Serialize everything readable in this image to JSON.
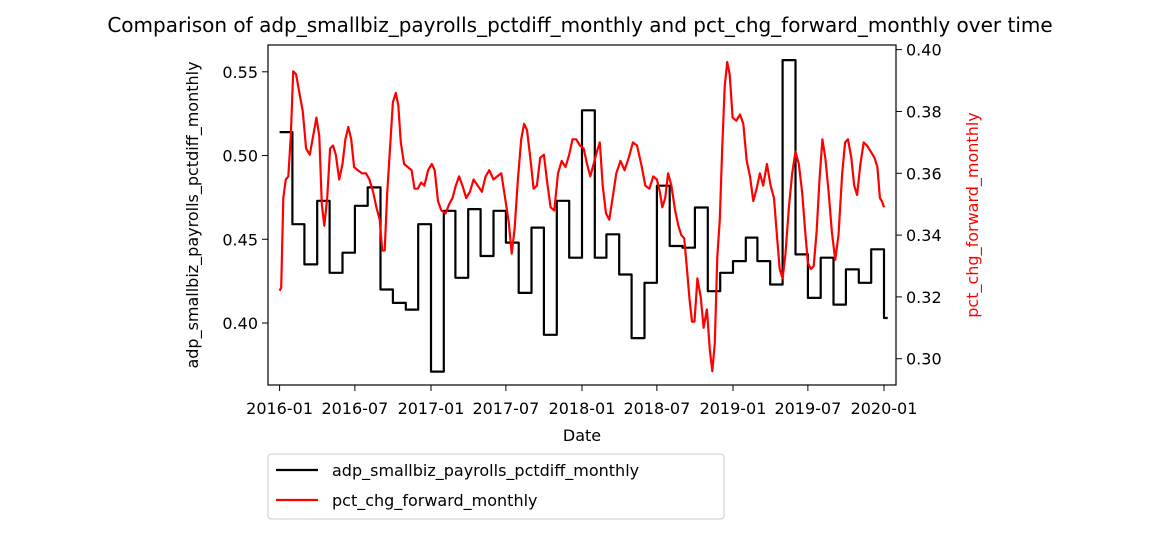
{
  "chart_data": {
    "type": "line",
    "title": "Comparison of adp_smallbiz_payrolls_pctdiff_monthly and pct_chg_forward_monthly over time",
    "xlabel": "Date",
    "ylabel_left": "adp_smallbiz_payrolls_pctdiff_monthly",
    "ylabel_right": "pct_chg_forward_monthly",
    "xlim": [
      "2015-12-04",
      "2020-01-30"
    ],
    "ylim_left": [
      0.363,
      0.566
    ],
    "ylim_right": [
      0.2915,
      0.4015
    ],
    "x_ticks": [
      "2016-01",
      "2016-07",
      "2017-01",
      "2017-07",
      "2018-01",
      "2018-07",
      "2019-01",
      "2019-07",
      "2020-01"
    ],
    "x_tick_values": [
      "2016-01-01",
      "2016-07-01",
      "2017-01-01",
      "2017-07-01",
      "2018-01-01",
      "2018-07-01",
      "2019-01-01",
      "2019-07-01",
      "2020-01-01"
    ],
    "y_ticks_left": [
      0.4,
      0.45,
      0.5,
      0.55
    ],
    "y_tick_labels_left": [
      "0.40",
      "0.45",
      "0.50",
      "0.55"
    ],
    "y_ticks_right": [
      0.3,
      0.32,
      0.34,
      0.36,
      0.38,
      0.4
    ],
    "y_tick_labels_right": [
      "0.30",
      "0.32",
      "0.34",
      "0.36",
      "0.38",
      "0.40"
    ],
    "grid": false,
    "legend_placement": "below-left",
    "series": [
      {
        "name": "adp_smallbiz_payrolls_pctdiff_monthly",
        "axis": "left",
        "color": "#000000",
        "step": true,
        "points": [
          [
            "2016-01-01",
            0.514
          ],
          [
            "2016-02-01",
            0.459
          ],
          [
            "2016-03-01",
            0.435
          ],
          [
            "2016-04-01",
            0.473
          ],
          [
            "2016-05-01",
            0.43
          ],
          [
            "2016-06-01",
            0.442
          ],
          [
            "2016-07-01",
            0.47
          ],
          [
            "2016-08-01",
            0.481
          ],
          [
            "2016-09-01",
            0.42
          ],
          [
            "2016-10-01",
            0.412
          ],
          [
            "2016-11-01",
            0.408
          ],
          [
            "2016-12-01",
            0.459
          ],
          [
            "2017-01-01",
            0.371
          ],
          [
            "2017-02-01",
            0.467
          ],
          [
            "2017-03-01",
            0.427
          ],
          [
            "2017-04-01",
            0.468
          ],
          [
            "2017-05-01",
            0.44
          ],
          [
            "2017-06-01",
            0.467
          ],
          [
            "2017-07-01",
            0.448
          ],
          [
            "2017-08-01",
            0.418
          ],
          [
            "2017-09-01",
            0.457
          ],
          [
            "2017-10-01",
            0.393
          ],
          [
            "2017-11-01",
            0.473
          ],
          [
            "2017-12-01",
            0.439
          ],
          [
            "2018-01-01",
            0.527
          ],
          [
            "2018-02-01",
            0.439
          ],
          [
            "2018-03-01",
            0.453
          ],
          [
            "2018-04-01",
            0.429
          ],
          [
            "2018-05-01",
            0.391
          ],
          [
            "2018-06-01",
            0.424
          ],
          [
            "2018-07-01",
            0.482
          ],
          [
            "2018-08-01",
            0.446
          ],
          [
            "2018-09-01",
            0.445
          ],
          [
            "2018-10-01",
            0.469
          ],
          [
            "2018-11-01",
            0.419
          ],
          [
            "2018-12-01",
            0.43
          ],
          [
            "2019-01-01",
            0.437
          ],
          [
            "2019-02-01",
            0.451
          ],
          [
            "2019-03-01",
            0.437
          ],
          [
            "2019-04-01",
            0.423
          ],
          [
            "2019-05-01",
            0.557
          ],
          [
            "2019-06-01",
            0.441
          ],
          [
            "2019-07-01",
            0.415
          ],
          [
            "2019-08-01",
            0.439
          ],
          [
            "2019-09-01",
            0.411
          ],
          [
            "2019-10-01",
            0.432
          ],
          [
            "2019-11-01",
            0.424
          ],
          [
            "2019-12-01",
            0.444
          ],
          [
            "2020-01-01",
            0.403
          ]
        ]
      },
      {
        "name": "pct_chg_forward_monthly",
        "axis": "right",
        "color": "#ff0000",
        "step": false,
        "points": [
          [
            "2016-01-01",
            0.322
          ],
          [
            "2016-01-05",
            0.323
          ],
          [
            "2016-01-10",
            0.352
          ],
          [
            "2016-01-16",
            0.358
          ],
          [
            "2016-01-22",
            0.359
          ],
          [
            "2016-01-28",
            0.372
          ],
          [
            "2016-02-03",
            0.393
          ],
          [
            "2016-02-10",
            0.392
          ],
          [
            "2016-02-18",
            0.386
          ],
          [
            "2016-02-26",
            0.38
          ],
          [
            "2016-03-05",
            0.368
          ],
          [
            "2016-03-14",
            0.366
          ],
          [
            "2016-03-22",
            0.372
          ],
          [
            "2016-03-30",
            0.378
          ],
          [
            "2016-04-06",
            0.372
          ],
          [
            "2016-04-12",
            0.35
          ],
          [
            "2016-04-18",
            0.343
          ],
          [
            "2016-04-25",
            0.352
          ],
          [
            "2016-05-02",
            0.368
          ],
          [
            "2016-05-09",
            0.369
          ],
          [
            "2016-05-16",
            0.366
          ],
          [
            "2016-05-24",
            0.358
          ],
          [
            "2016-06-01",
            0.363
          ],
          [
            "2016-06-08",
            0.371
          ],
          [
            "2016-06-15",
            0.375
          ],
          [
            "2016-06-22",
            0.371
          ],
          [
            "2016-06-29",
            0.362
          ],
          [
            "2016-07-08",
            0.361
          ],
          [
            "2016-07-18",
            0.36
          ],
          [
            "2016-07-28",
            0.36
          ],
          [
            "2016-08-05",
            0.358
          ],
          [
            "2016-08-14",
            0.354
          ],
          [
            "2016-08-22",
            0.349
          ],
          [
            "2016-08-30",
            0.345
          ],
          [
            "2016-09-05",
            0.335
          ],
          [
            "2016-09-11",
            0.335
          ],
          [
            "2016-09-17",
            0.353
          ],
          [
            "2016-09-24",
            0.368
          ],
          [
            "2016-10-01",
            0.383
          ],
          [
            "2016-10-08",
            0.386
          ],
          [
            "2016-10-14",
            0.382
          ],
          [
            "2016-10-20",
            0.37
          ],
          [
            "2016-10-28",
            0.363
          ],
          [
            "2016-11-06",
            0.362
          ],
          [
            "2016-11-15",
            0.361
          ],
          [
            "2016-11-22",
            0.355
          ],
          [
            "2016-11-30",
            0.355
          ],
          [
            "2016-12-08",
            0.357
          ],
          [
            "2016-12-16",
            0.356
          ],
          [
            "2016-12-25",
            0.361
          ],
          [
            "2017-01-03",
            0.363
          ],
          [
            "2017-01-10",
            0.361
          ],
          [
            "2017-01-18",
            0.351
          ],
          [
            "2017-01-26",
            0.348
          ],
          [
            "2017-02-05",
            0.347
          ],
          [
            "2017-02-14",
            0.35
          ],
          [
            "2017-02-22",
            0.352
          ],
          [
            "2017-03-02",
            0.356
          ],
          [
            "2017-03-10",
            0.359
          ],
          [
            "2017-03-18",
            0.356
          ],
          [
            "2017-03-27",
            0.352
          ],
          [
            "2017-04-05",
            0.354
          ],
          [
            "2017-04-14",
            0.358
          ],
          [
            "2017-04-24",
            0.356
          ],
          [
            "2017-05-04",
            0.354
          ],
          [
            "2017-05-13",
            0.359
          ],
          [
            "2017-05-22",
            0.361
          ],
          [
            "2017-06-01",
            0.358
          ],
          [
            "2017-06-10",
            0.359
          ],
          [
            "2017-06-20",
            0.36
          ],
          [
            "2017-06-29",
            0.352
          ],
          [
            "2017-07-08",
            0.344
          ],
          [
            "2017-07-15",
            0.334
          ],
          [
            "2017-07-22",
            0.342
          ],
          [
            "2017-07-30",
            0.358
          ],
          [
            "2017-08-07",
            0.371
          ],
          [
            "2017-08-14",
            0.376
          ],
          [
            "2017-08-21",
            0.374
          ],
          [
            "2017-08-29",
            0.365
          ],
          [
            "2017-09-06",
            0.355
          ],
          [
            "2017-09-14",
            0.356
          ],
          [
            "2017-09-22",
            0.365
          ],
          [
            "2017-10-01",
            0.366
          ],
          [
            "2017-10-09",
            0.357
          ],
          [
            "2017-10-17",
            0.349
          ],
          [
            "2017-10-26",
            0.348
          ],
          [
            "2017-11-04",
            0.36
          ],
          [
            "2017-11-13",
            0.364
          ],
          [
            "2017-11-22",
            0.362
          ],
          [
            "2017-12-01",
            0.366
          ],
          [
            "2017-12-09",
            0.371
          ],
          [
            "2017-12-18",
            0.371
          ],
          [
            "2017-12-27",
            0.369
          ],
          [
            "2018-01-05",
            0.368
          ],
          [
            "2018-01-13",
            0.363
          ],
          [
            "2018-01-21",
            0.359
          ],
          [
            "2018-01-29",
            0.363
          ],
          [
            "2018-02-06",
            0.367
          ],
          [
            "2018-02-13",
            0.37
          ],
          [
            "2018-02-20",
            0.356
          ],
          [
            "2018-02-28",
            0.347
          ],
          [
            "2018-03-08",
            0.345
          ],
          [
            "2018-03-16",
            0.352
          ],
          [
            "2018-03-25",
            0.36
          ],
          [
            "2018-04-04",
            0.364
          ],
          [
            "2018-04-14",
            0.361
          ],
          [
            "2018-04-24",
            0.365
          ],
          [
            "2018-05-04",
            0.37
          ],
          [
            "2018-05-14",
            0.369
          ],
          [
            "2018-05-24",
            0.363
          ],
          [
            "2018-06-03",
            0.356
          ],
          [
            "2018-06-13",
            0.355
          ],
          [
            "2018-06-22",
            0.359
          ],
          [
            "2018-07-01",
            0.358
          ],
          [
            "2018-07-08",
            0.354
          ],
          [
            "2018-07-14",
            0.349
          ],
          [
            "2018-07-21",
            0.352
          ],
          [
            "2018-07-28",
            0.36
          ],
          [
            "2018-08-05",
            0.356
          ],
          [
            "2018-08-14",
            0.348
          ],
          [
            "2018-08-22",
            0.343
          ],
          [
            "2018-08-29",
            0.34
          ],
          [
            "2018-09-05",
            0.339
          ],
          [
            "2018-09-11",
            0.33
          ],
          [
            "2018-09-18",
            0.319
          ],
          [
            "2018-09-24",
            0.312
          ],
          [
            "2018-09-30",
            0.312
          ],
          [
            "2018-10-07",
            0.326
          ],
          [
            "2018-10-15",
            0.32
          ],
          [
            "2018-10-22",
            0.31
          ],
          [
            "2018-10-30",
            0.316
          ],
          [
            "2018-11-06",
            0.303
          ],
          [
            "2018-11-12",
            0.296
          ],
          [
            "2018-11-18",
            0.305
          ],
          [
            "2018-11-24",
            0.333
          ],
          [
            "2018-11-30",
            0.345
          ],
          [
            "2018-12-06",
            0.368
          ],
          [
            "2018-12-12",
            0.388
          ],
          [
            "2018-12-18",
            0.396
          ],
          [
            "2018-12-24",
            0.392
          ],
          [
            "2018-12-31",
            0.378
          ],
          [
            "2019-01-09",
            0.377
          ],
          [
            "2019-01-18",
            0.379
          ],
          [
            "2019-01-26",
            0.376
          ],
          [
            "2019-02-03",
            0.364
          ],
          [
            "2019-02-11",
            0.359
          ],
          [
            "2019-02-19",
            0.351
          ],
          [
            "2019-02-27",
            0.355
          ],
          [
            "2019-03-07",
            0.36
          ],
          [
            "2019-03-15",
            0.356
          ],
          [
            "2019-03-24",
            0.363
          ],
          [
            "2019-04-02",
            0.356
          ],
          [
            "2019-04-10",
            0.352
          ],
          [
            "2019-04-17",
            0.34
          ],
          [
            "2019-04-24",
            0.329
          ],
          [
            "2019-05-01",
            0.326
          ],
          [
            "2019-05-08",
            0.334
          ],
          [
            "2019-05-16",
            0.349
          ],
          [
            "2019-05-24",
            0.36
          ],
          [
            "2019-06-01",
            0.367
          ],
          [
            "2019-06-09",
            0.363
          ],
          [
            "2019-06-17",
            0.354
          ],
          [
            "2019-06-24",
            0.342
          ],
          [
            "2019-07-01",
            0.331
          ],
          [
            "2019-07-08",
            0.329
          ],
          [
            "2019-07-15",
            0.33
          ],
          [
            "2019-07-22",
            0.341
          ],
          [
            "2019-07-29",
            0.358
          ],
          [
            "2019-08-05",
            0.371
          ],
          [
            "2019-08-12",
            0.365
          ],
          [
            "2019-08-20",
            0.354
          ],
          [
            "2019-08-28",
            0.341
          ],
          [
            "2019-09-05",
            0.332
          ],
          [
            "2019-09-13",
            0.34
          ],
          [
            "2019-09-22",
            0.36
          ],
          [
            "2019-09-29",
            0.37
          ],
          [
            "2019-10-06",
            0.371
          ],
          [
            "2019-10-14",
            0.365
          ],
          [
            "2019-10-21",
            0.356
          ],
          [
            "2019-10-28",
            0.353
          ],
          [
            "2019-11-05",
            0.363
          ],
          [
            "2019-11-13",
            0.37
          ],
          [
            "2019-11-21",
            0.369
          ],
          [
            "2019-11-30",
            0.367
          ],
          [
            "2019-12-09",
            0.365
          ],
          [
            "2019-12-16",
            0.362
          ],
          [
            "2019-12-22",
            0.352
          ],
          [
            "2019-12-27",
            0.351
          ],
          [
            "2020-01-01",
            0.349
          ]
        ]
      }
    ]
  }
}
